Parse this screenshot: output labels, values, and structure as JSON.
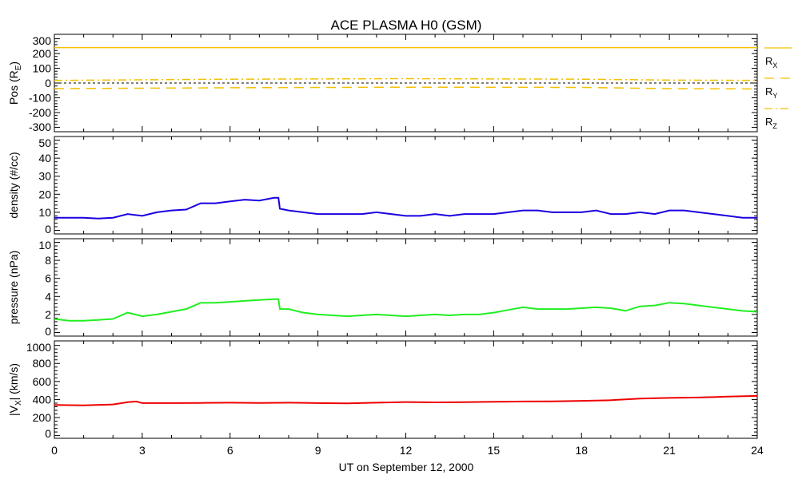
{
  "chart_data": {
    "type": "line",
    "title": "ACE PLASMA H0 (GSM)",
    "xlabel": "UT on September 12, 2000",
    "xlim": [
      0,
      24
    ],
    "xticks": [
      "0",
      "3",
      "6",
      "9",
      "12",
      "15",
      "18",
      "21",
      "24"
    ],
    "panels": [
      {
        "ylabel": "Pos (R",
        "ylabel_sub": "E",
        "ylabel_end": ")",
        "ylim": [
          -330,
          330
        ],
        "yticks": [
          300,
          200,
          100,
          0,
          -100,
          -200,
          -300
        ],
        "zero_line": true,
        "legend": [
          {
            "label": "R",
            "sub": "X",
            "style": "solid"
          },
          {
            "label": "R",
            "sub": "Y",
            "style": "dashed"
          },
          {
            "label": "R",
            "sub": "Z",
            "style": "dashdot"
          }
        ],
        "series": [
          {
            "name": "RX",
            "color": "#f5c000",
            "style": "solid",
            "x": [
              0,
              24
            ],
            "y": [
              240,
              240
            ]
          },
          {
            "name": "RY",
            "color": "#f5c000",
            "style": "dashed",
            "x": [
              0,
              6,
              12,
              18,
              21,
              24
            ],
            "y": [
              -38,
              -32,
              -28,
              -30,
              -38,
              -40
            ]
          },
          {
            "name": "RZ",
            "color": "#f5c000",
            "style": "dashdot",
            "x": [
              0,
              6,
              12,
              18,
              21,
              24
            ],
            "y": [
              18,
              26,
              30,
              26,
              20,
              18
            ]
          }
        ]
      },
      {
        "ylabel": "density (#/cc)",
        "ylim": [
          -2,
          52
        ],
        "yticks": [
          50,
          40,
          30,
          20,
          10,
          0
        ],
        "series": [
          {
            "name": "density",
            "color": "#1a00e0",
            "style": "solid",
            "x": [
              0,
              0.5,
              1,
              1.5,
              2,
              2.5,
              3,
              3.5,
              4,
              4.5,
              5,
              5.5,
              6,
              6.5,
              7,
              7.5,
              7.65,
              7.7,
              8,
              8.5,
              9,
              9.5,
              10,
              10.5,
              11,
              11.5,
              12,
              12.5,
              13,
              13.5,
              14,
              14.5,
              15,
              15.5,
              16,
              16.5,
              17,
              17.5,
              18,
              18.5,
              19,
              19.5,
              20,
              20.5,
              21,
              21.5,
              22,
              22.5,
              23,
              23.5,
              24
            ],
            "y": [
              7,
              7,
              7,
              6.5,
              7,
              9,
              8,
              10,
              11,
              11.5,
              15,
              15,
              16,
              17,
              16.5,
              18,
              18,
              12,
              11,
              10,
              9,
              9,
              9,
              9,
              10,
              9,
              8,
              8,
              9,
              8,
              9,
              9,
              9,
              10,
              11,
              11,
              10,
              10,
              10,
              11,
              9,
              9,
              10,
              9,
              11,
              11,
              10,
              9,
              8,
              7,
              7
            ]
          }
        ]
      },
      {
        "ylabel": "pressure (nPa)",
        "ylim": [
          -0.4,
          10.4
        ],
        "yticks": [
          10,
          8,
          6,
          4,
          2,
          0
        ],
        "series": [
          {
            "name": "pressure",
            "color": "#22ee22",
            "style": "solid",
            "x": [
              0,
              0.5,
              1,
              1.5,
              2,
              2.5,
              3,
              3.5,
              4,
              4.5,
              5,
              5.5,
              6,
              6.5,
              7,
              7.5,
              7.65,
              7.7,
              8,
              8.5,
              9,
              9.5,
              10,
              10.5,
              11,
              11.5,
              12,
              12.5,
              13,
              13.5,
              14,
              14.5,
              15,
              15.5,
              16,
              16.5,
              17,
              17.5,
              18,
              18.5,
              19,
              19.5,
              20,
              20.5,
              21,
              21.5,
              22,
              22.5,
              23,
              23.5,
              24
            ],
            "y": [
              1.5,
              1.3,
              1.3,
              1.4,
              1.5,
              2.2,
              1.8,
              2.0,
              2.3,
              2.6,
              3.3,
              3.3,
              3.4,
              3.5,
              3.6,
              3.7,
              3.7,
              2.6,
              2.6,
              2.2,
              2.0,
              1.9,
              1.8,
              1.9,
              2.0,
              1.9,
              1.8,
              1.9,
              2.0,
              1.9,
              2.0,
              2.0,
              2.2,
              2.5,
              2.8,
              2.6,
              2.6,
              2.6,
              2.7,
              2.8,
              2.7,
              2.4,
              2.9,
              3.0,
              3.3,
              3.2,
              3.0,
              2.8,
              2.6,
              2.4,
              2.3
            ]
          }
        ]
      },
      {
        "ylabel": "|V",
        "ylabel_sub": "X",
        "ylabel_end": "| (km/s)",
        "ylim": [
          -30,
          1050
        ],
        "yticks": [
          1000,
          800,
          600,
          400,
          200,
          0
        ],
        "series": [
          {
            "name": "Vx",
            "color": "#ee0000",
            "style": "solid",
            "x": [
              0,
              1,
              2,
              2.5,
              2.8,
              3,
              4,
              5,
              6,
              7,
              8,
              9,
              10,
              11,
              12,
              13,
              14,
              15,
              16,
              17,
              18,
              19,
              20,
              21,
              22,
              23,
              24
            ],
            "y": [
              340,
              335,
              345,
              370,
              378,
              360,
              360,
              362,
              365,
              362,
              365,
              360,
              358,
              365,
              372,
              368,
              370,
              375,
              378,
              380,
              385,
              392,
              410,
              418,
              422,
              432,
              440
            ]
          }
        ]
      }
    ]
  }
}
